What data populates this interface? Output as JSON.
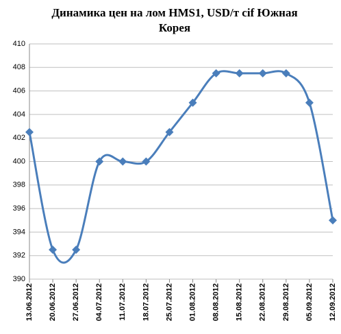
{
  "chart_data": {
    "type": "line",
    "title": "Динамика цен на лом HMS1, USD/т cif Южная Корея",
    "categories": [
      "13.06.2012",
      "20.06.2012",
      "27.06.2012",
      "04.07.2012",
      "11.07.2012",
      "18.07.2012",
      "25.07.2012",
      "01.08.2012",
      "08.08.2012",
      "15.08.2012",
      "22.08.2012",
      "29.08.2012",
      "05.09.2012",
      "12.09.2012"
    ],
    "values": [
      402.5,
      392.5,
      392.5,
      400,
      400,
      400,
      402.5,
      405,
      407.5,
      407.5,
      407.5,
      407.5,
      405,
      395
    ],
    "color": "#4a7ebb",
    "ylim": [
      390,
      410
    ],
    "yticks": [
      390,
      392,
      394,
      396,
      398,
      400,
      402,
      404,
      406,
      408,
      410
    ],
    "grid": true
  }
}
